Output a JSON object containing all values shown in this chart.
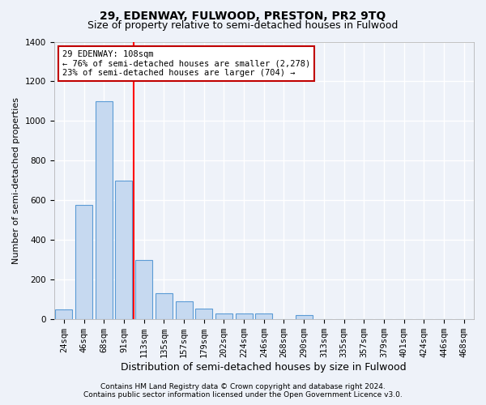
{
  "title": "29, EDENWAY, FULWOOD, PRESTON, PR2 9TQ",
  "subtitle": "Size of property relative to semi-detached houses in Fulwood",
  "xlabel": "Distribution of semi-detached houses by size in Fulwood",
  "ylabel": "Number of semi-detached properties",
  "categories": [
    "24sqm",
    "46sqm",
    "68sqm",
    "91sqm",
    "113sqm",
    "135sqm",
    "157sqm",
    "179sqm",
    "202sqm",
    "224sqm",
    "246sqm",
    "268sqm",
    "290sqm",
    "313sqm",
    "335sqm",
    "357sqm",
    "379sqm",
    "401sqm",
    "424sqm",
    "446sqm",
    "468sqm"
  ],
  "values": [
    50,
    575,
    1100,
    700,
    300,
    130,
    90,
    55,
    30,
    30,
    30,
    0,
    20,
    0,
    0,
    0,
    0,
    0,
    0,
    0,
    0
  ],
  "bar_color": "#c6d9f0",
  "bar_edge_color": "#5b9bd5",
  "red_line_index": 4,
  "annotation_line1": "29 EDENWAY: 108sqm",
  "annotation_line2": "← 76% of semi-detached houses are smaller (2,278)",
  "annotation_line3": "23% of semi-detached houses are larger (704) →",
  "annotation_box_color": "#ffffff",
  "annotation_box_edge": "#c00000",
  "ylim": [
    0,
    1400
  ],
  "yticks": [
    0,
    200,
    400,
    600,
    800,
    1000,
    1200,
    1400
  ],
  "footer1": "Contains HM Land Registry data © Crown copyright and database right 2024.",
  "footer2": "Contains public sector information licensed under the Open Government Licence v3.0.",
  "bg_color": "#eef2f9",
  "plot_bg_color": "#eef2f9",
  "grid_color": "#ffffff",
  "title_fontsize": 10,
  "subtitle_fontsize": 9,
  "xlabel_fontsize": 9,
  "ylabel_fontsize": 8,
  "tick_fontsize": 7.5,
  "annot_fontsize": 7.5,
  "footer_fontsize": 6.5
}
